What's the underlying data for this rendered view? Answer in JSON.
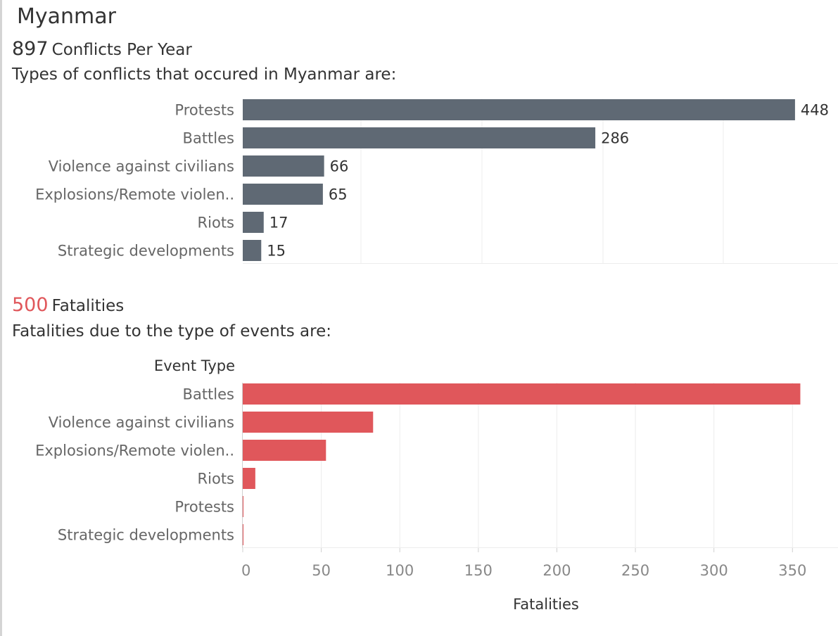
{
  "country": "Myanmar",
  "conflicts": {
    "count": "897",
    "label": "Conflicts Per Year"
  },
  "conflict_types_title": "Types of conflicts that occured in Myanmar are:",
  "fatalities": {
    "count": "500",
    "label": "Fatalities"
  },
  "fatalities_title": "Fatalities due to the type of events are:",
  "colors": {
    "conflict_bar": "#5f6974",
    "fatality_bar": "#e0575b",
    "fatality_number": "#e0575b",
    "grid": "#ececec"
  },
  "chart_data": [
    {
      "type": "bar",
      "orientation": "horizontal",
      "categories": [
        "Protests",
        "Battles",
        "Violence against civilians",
        "Explosions/Remote violen..",
        "Riots",
        "Strategic developments"
      ],
      "values": [
        448,
        286,
        66,
        65,
        17,
        15
      ],
      "data_labels": true,
      "xlim": [
        0,
        488
      ],
      "grid": true
    },
    {
      "type": "bar",
      "orientation": "horizontal",
      "ylabel": "Event Type",
      "xlabel": "Fatalities",
      "categories": [
        "Battles",
        "Violence against civilians",
        "Explosions/Remote violen..",
        "Riots",
        "Protests",
        "Strategic developments"
      ],
      "values": [
        355,
        83,
        53,
        8,
        0,
        0
      ],
      "xlim": [
        0,
        366
      ],
      "xticks": [
        0,
        50,
        100,
        150,
        200,
        250,
        300,
        350
      ],
      "grid": true
    }
  ]
}
